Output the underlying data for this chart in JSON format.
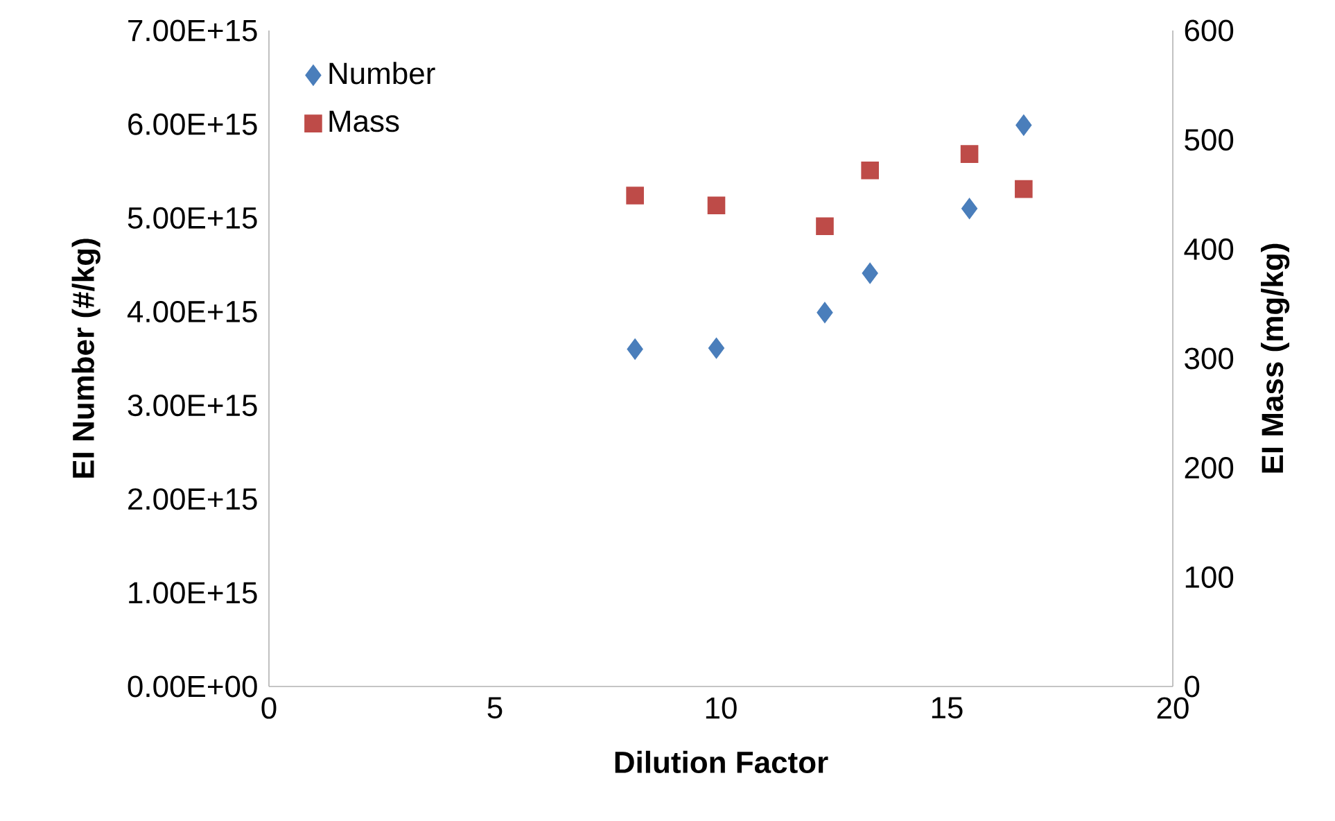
{
  "chart_data": {
    "type": "scatter",
    "xlabel": "Dilution Factor",
    "ylabel": "EI Number (#/kg)",
    "y2label": "EI Mass (mg/kg)",
    "x": [
      8.1,
      9.9,
      12.3,
      13.3,
      15.5,
      16.7
    ],
    "xlim": [
      0,
      20
    ],
    "xticks": [
      0,
      5,
      10,
      15,
      20
    ],
    "ylim": [
      0,
      7000000000000000.0
    ],
    "yticks": [
      {
        "value": 0,
        "label": "0.00E+00"
      },
      {
        "value": 1000000000000000.0,
        "label": "1.00E+15"
      },
      {
        "value": 2000000000000000.0,
        "label": "2.00E+15"
      },
      {
        "value": 3000000000000000.0,
        "label": "3.00E+15"
      },
      {
        "value": 4000000000000000.0,
        "label": "4.00E+15"
      },
      {
        "value": 5000000000000000.0,
        "label": "5.00E+15"
      },
      {
        "value": 6000000000000000.0,
        "label": "6.00E+15"
      },
      {
        "value": 7000000000000000.0,
        "label": "7.00E+15"
      }
    ],
    "y2lim": [
      0,
      600
    ],
    "y2ticks": [
      0,
      100,
      200,
      300,
      400,
      500,
      600
    ],
    "legend": "top left",
    "grid": false,
    "series": [
      {
        "name": "Number",
        "color": "#4a7ebb",
        "marker": "diamond",
        "values": [
          3600000000000000.0,
          3610000000000000.0,
          3990000000000000.0,
          4410000000000000.0,
          5100000000000000.0,
          5990000000000000.0
        ]
      },
      {
        "name": "Mass",
        "color": "#be4b48",
        "marker": "square",
        "axis": "y2",
        "values": [
          449,
          440,
          421,
          472,
          487,
          455
        ]
      }
    ]
  }
}
